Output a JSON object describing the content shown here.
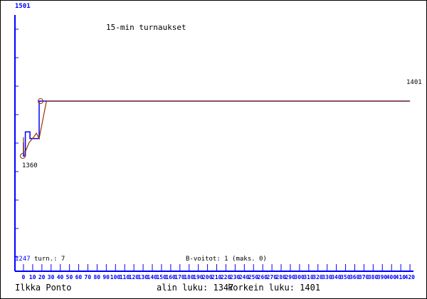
{
  "chart_data": {
    "type": "line",
    "title": "15-min turnaukset",
    "xlabel": "",
    "ylabel": "",
    "xlim": [
      0,
      420
    ],
    "ylim": [
      1247,
      1501
    ],
    "x_ticks": [
      0,
      10,
      20,
      30,
      40,
      50,
      60,
      70,
      80,
      90,
      100,
      110,
      120,
      130,
      140,
      150,
      160,
      170,
      180,
      190,
      200,
      210,
      220,
      230,
      240,
      250,
      260,
      270,
      280,
      290,
      300,
      310,
      320,
      330,
      340,
      350,
      360,
      370,
      380,
      390,
      400,
      410,
      420
    ],
    "y_min_label": "1247",
    "y_max_label": "1501",
    "grid": false,
    "series": [
      {
        "color": "#0000ff",
        "points": [
          [
            0,
            1370
          ],
          [
            0,
            1360
          ],
          [
            2,
            1360
          ],
          [
            2,
            1378
          ],
          [
            7,
            1378
          ],
          [
            7,
            1373
          ],
          [
            17,
            1373
          ],
          [
            17,
            1401
          ],
          [
            420,
            1401
          ]
        ]
      },
      {
        "color": "#993300",
        "points": [
          [
            0,
            1374
          ],
          [
            0,
            1363
          ],
          [
            2,
            1363
          ],
          [
            6,
            1370
          ],
          [
            11,
            1374
          ],
          [
            14,
            1377
          ],
          [
            17,
            1373
          ],
          [
            25,
            1401
          ],
          [
            420,
            1401
          ]
        ]
      }
    ],
    "annotations": {
      "min_value": "1360",
      "end_value": "1401",
      "games": "turn.: 7",
      "b_wins": "B-voitot: 1 (maks. 0)"
    }
  },
  "footer": {
    "player": "Ilkka Ponto",
    "lowest": "alin luku: 1347",
    "highest": "korkein luku: 1401"
  },
  "colors": {
    "axis": "#0000ff",
    "avg_line": "#993300"
  }
}
